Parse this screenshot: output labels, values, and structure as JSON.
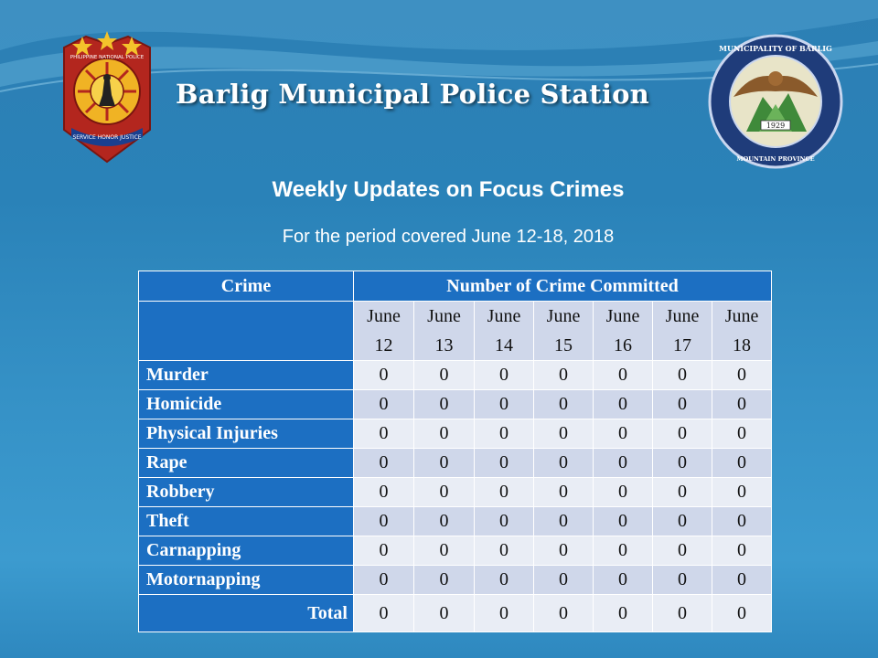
{
  "header": {
    "title": "Barlig Municipal Police Station",
    "pnp_logo": {
      "arc_text": "PHILIPPINE NATIONAL POLICE",
      "banner_text": "SERVICE HONOR JUSTICE"
    },
    "barlig_logo": {
      "arc_text": "MUNICIPALITY OF BARLIG",
      "year": "1929",
      "bottom_text": "MOUNTAIN PROVINCE"
    }
  },
  "subtitle": "Weekly Updates on Focus Crimes",
  "period": "For the period covered June 12-18, 2018",
  "table": {
    "col_crime": "Crime",
    "col_count": "Number of Crime Committed",
    "dates": [
      {
        "month": "June",
        "day": "12"
      },
      {
        "month": "June",
        "day": "13"
      },
      {
        "month": "June",
        "day": "14"
      },
      {
        "month": "June",
        "day": "15"
      },
      {
        "month": "June",
        "day": "16"
      },
      {
        "month": "June",
        "day": "17"
      },
      {
        "month": "June",
        "day": "18"
      }
    ],
    "rows": [
      {
        "crime": "Murder",
        "values": [
          "0",
          "0",
          "0",
          "0",
          "0",
          "0",
          "0"
        ]
      },
      {
        "crime": "Homicide",
        "values": [
          "0",
          "0",
          "0",
          "0",
          "0",
          "0",
          "0"
        ]
      },
      {
        "crime": "Physical Injuries",
        "values": [
          "0",
          "0",
          "0",
          "0",
          "0",
          "0",
          "0"
        ]
      },
      {
        "crime": "Rape",
        "values": [
          "0",
          "0",
          "0",
          "0",
          "0",
          "0",
          "0"
        ]
      },
      {
        "crime": "Robbery",
        "values": [
          "0",
          "0",
          "0",
          "0",
          "0",
          "0",
          "0"
        ]
      },
      {
        "crime": "Theft",
        "values": [
          "0",
          "0",
          "0",
          "0",
          "0",
          "0",
          "0"
        ]
      },
      {
        "crime": "Carnapping",
        "values": [
          "0",
          "0",
          "0",
          "0",
          "0",
          "0",
          "0"
        ]
      },
      {
        "crime": "Motornapping",
        "values": [
          "0",
          "0",
          "0",
          "0",
          "0",
          "0",
          "0"
        ]
      }
    ],
    "total_label": "Total",
    "total_values": [
      "0",
      "0",
      "0",
      "0",
      "0",
      "0",
      "0"
    ]
  },
  "colors": {
    "header_blue": "#1c6fc2",
    "row_light": "#e9edf5",
    "row_mid": "#cfd7ea",
    "background": "#2d86bd"
  }
}
